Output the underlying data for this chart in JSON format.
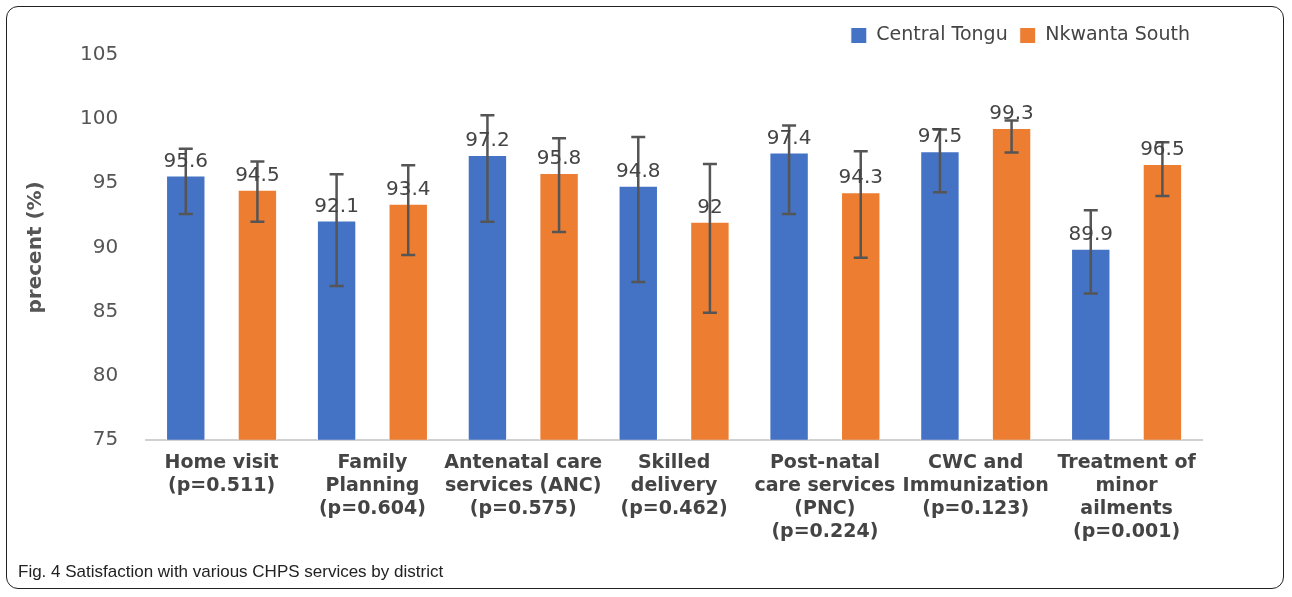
{
  "chart_data": {
    "type": "bar",
    "categories": [
      "Home visit\n(p=0.511)",
      "Family\nPlanning\n(p=0.604)",
      "Antenatal care\nservices (ANC)\n(p=0.575)",
      "Skilled\ndelivery\n(p=0.462)",
      "Post-natal\ncare services\n(PNC)\n(p=0.224)",
      "CWC and\nImmunization\n(p=0.123)",
      "Treatment of\nminor\nailments\n(p=0.001)"
    ],
    "series": [
      {
        "name": "Central Tongu",
        "color": "#4472c4",
        "values": [
          95.6,
          92.1,
          97.2,
          94.8,
          97.4,
          97.5,
          89.9
        ],
        "errors": [
          [
            92.6,
            97.7
          ],
          [
            87.0,
            95.7
          ],
          [
            92.0,
            100.3
          ],
          [
            87.3,
            98.6
          ],
          [
            92.6,
            99.5
          ],
          [
            94.3,
            99.2
          ],
          [
            86.4,
            92.9
          ]
        ]
      },
      {
        "name": "Nkwanta South",
        "color": "#ed7d31",
        "values": [
          94.5,
          93.4,
          95.8,
          92,
          94.3,
          99.3,
          96.5
        ],
        "errors": [
          [
            92.0,
            96.7
          ],
          [
            89.4,
            96.4
          ],
          [
            91.2,
            98.5
          ],
          [
            84.9,
            96.5
          ],
          [
            89.2,
            97.5
          ],
          [
            97.4,
            99.9
          ],
          [
            94.0,
            98.2
          ]
        ]
      }
    ],
    "ylabel": "precent (%)",
    "ylim": [
      75,
      105
    ],
    "yticks": [
      75,
      80,
      85,
      90,
      95,
      100,
      105
    ],
    "grid": false,
    "legend": "top right",
    "data_labels": true,
    "annotations": [
      "Fig. 4 Satisfaction with various CHPS services by district"
    ]
  }
}
